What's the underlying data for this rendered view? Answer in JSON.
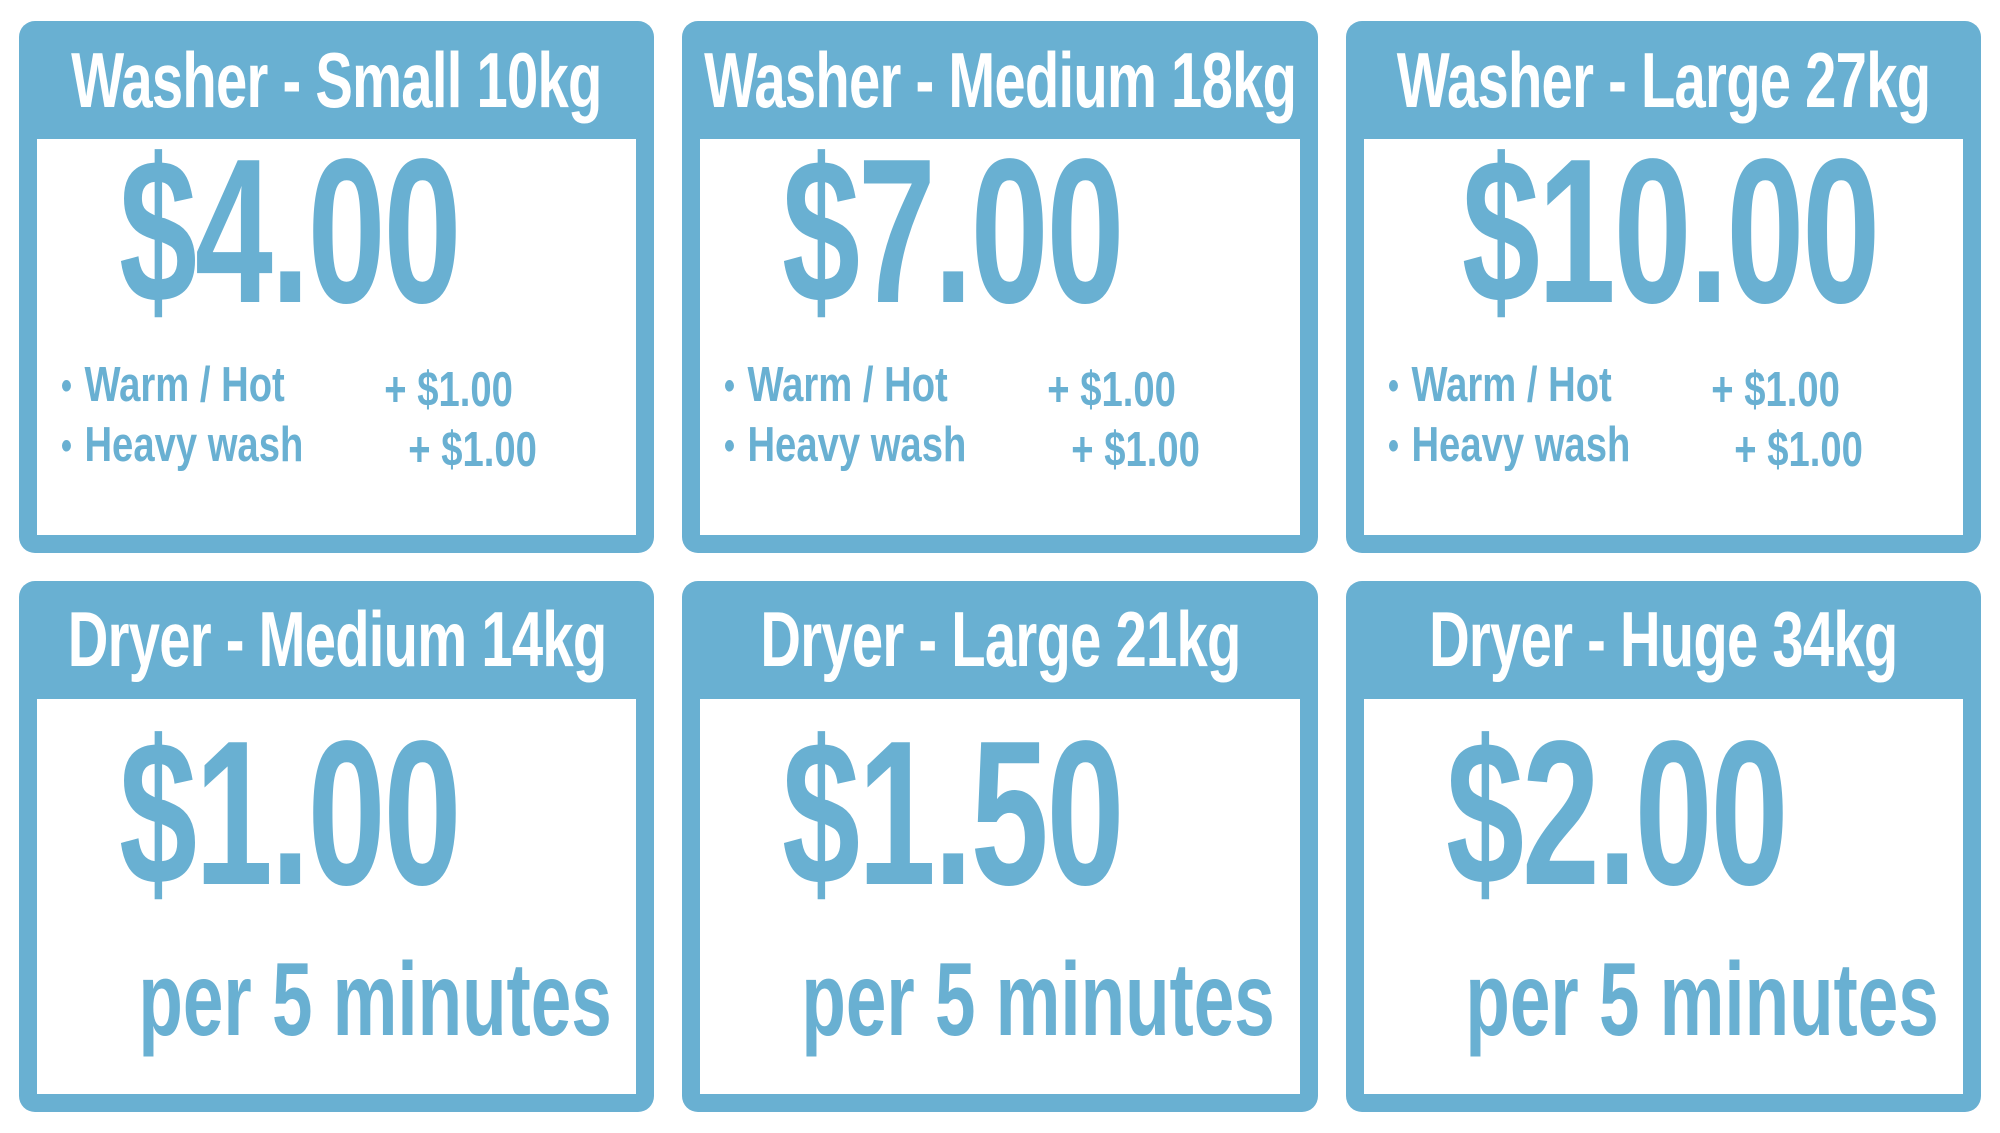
{
  "page": {
    "accent_color": "#69b0d2",
    "panel_color": "#ffffff",
    "title_text_color": "#ffffff"
  },
  "cards": [
    {
      "id": "washer-small",
      "type": "washer",
      "title": "Washer - Small 10kg",
      "price": "$4.00",
      "options": [
        {
          "label": "Warm / Hot",
          "surcharge": "+ $1.00"
        },
        {
          "label": "Heavy wash",
          "surcharge": "+ $1.00"
        }
      ]
    },
    {
      "id": "washer-medium",
      "type": "washer",
      "title": "Washer - Medium 18kg",
      "price": "$7.00",
      "options": [
        {
          "label": "Warm / Hot",
          "surcharge": "+ $1.00"
        },
        {
          "label": "Heavy wash",
          "surcharge": "+ $1.00"
        }
      ]
    },
    {
      "id": "washer-large",
      "type": "washer",
      "title": "Washer - Large 27kg",
      "price": "$10.00",
      "options": [
        {
          "label": "Warm / Hot",
          "surcharge": "+ $1.00"
        },
        {
          "label": "Heavy wash",
          "surcharge": "+ $1.00"
        }
      ]
    },
    {
      "id": "dryer-medium",
      "type": "dryer",
      "title": "Dryer - Medium 14kg",
      "price": "$1.00",
      "unit": "per 5 minutes"
    },
    {
      "id": "dryer-large",
      "type": "dryer",
      "title": "Dryer - Large 21kg",
      "price": "$1.50",
      "unit": "per 5 minutes"
    },
    {
      "id": "dryer-huge",
      "type": "dryer",
      "title": "Dryer - Huge 34kg",
      "price": "$2.00",
      "unit": "per 5 minutes"
    }
  ]
}
